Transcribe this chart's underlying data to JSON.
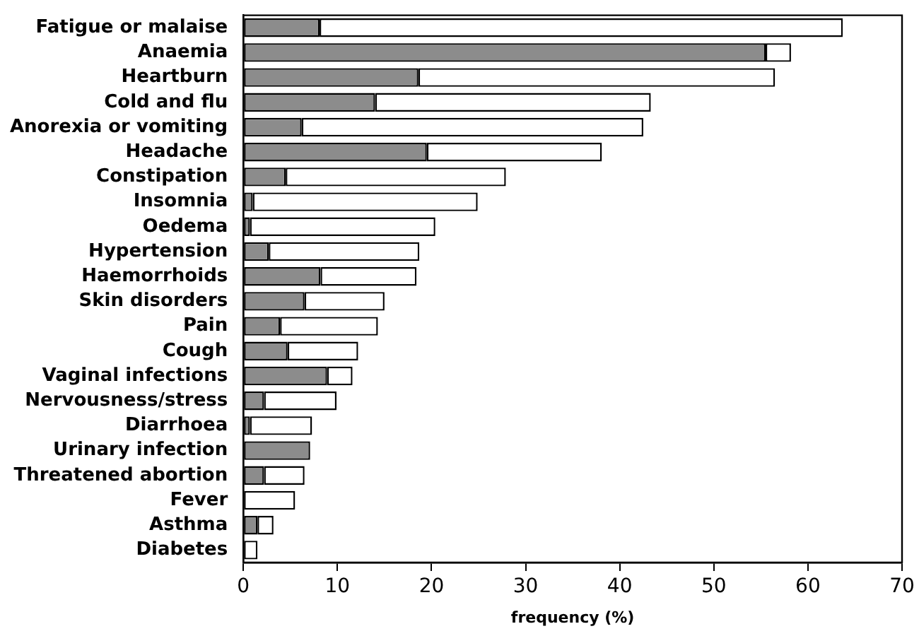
{
  "chart_data": {
    "type": "bar",
    "orientation": "horizontal",
    "stacked": true,
    "xlabel": "frequency (%)",
    "categories": [
      "Fatigue or malaise",
      "Anaemia",
      "Heartburn",
      "Cold and flu",
      "Anorexia or vomiting",
      "Headache",
      "Constipation",
      "Insomnia",
      "Oedema",
      "Hypertension",
      "Haemorrhoids",
      "Skin disorders",
      "Pain",
      "Cough",
      "Vaginal infections",
      "Nervousness/stress",
      "Diarrhoea",
      "Urinary infection",
      "Threatened abortion",
      "Fever",
      "Asthma",
      "Diabetes"
    ],
    "series": [
      {
        "color": "#8c8c8c",
        "values": [
          8.1,
          55.5,
          18.6,
          14.0,
          6.2,
          19.5,
          4.5,
          1.0,
          0.7,
          2.7,
          8.2,
          6.5,
          3.9,
          4.7,
          8.9,
          2.2,
          0.7,
          7.1,
          2.2,
          null,
          1.5,
          null
        ]
      },
      {
        "color": "#ffffff",
        "values": [
          55.6,
          2.7,
          37.9,
          29.3,
          36.3,
          18.6,
          23.4,
          23.9,
          19.7,
          16.0,
          10.2,
          8.5,
          10.4,
          7.5,
          2.7,
          7.7,
          6.6,
          null,
          4.3,
          5.5,
          1.7,
          1.5
        ]
      }
    ],
    "xlim": [
      0,
      70
    ],
    "xticks": [
      0,
      10,
      20,
      30,
      40,
      50,
      60,
      70
    ],
    "grid": false,
    "legend": false
  }
}
